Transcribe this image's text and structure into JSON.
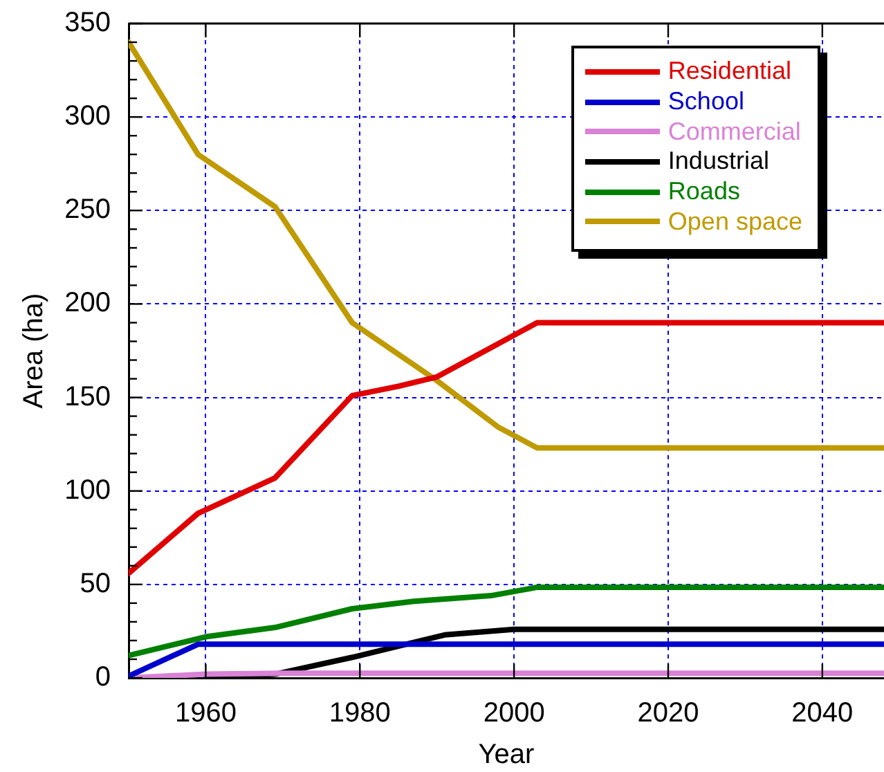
{
  "chart_data": {
    "type": "line",
    "xlabel": "Year",
    "ylabel": "Area (ha)",
    "xlim": [
      1950,
      2048
    ],
    "xticks": [
      1960,
      1980,
      2000,
      2020,
      2040
    ],
    "ylim": [
      0,
      350
    ],
    "yticks": [
      0,
      {
        "value": 10,
        "label": null
      },
      {
        "value": 20,
        "label": null
      },
      {
        "value": 30,
        "label": null
      },
      {
        "value": 40,
        "label": null
      },
      50,
      {
        "value": 60,
        "label": null
      },
      {
        "value": 70,
        "label": null
      },
      {
        "value": 80,
        "label": null
      },
      {
        "value": 90,
        "label": null
      },
      100,
      {
        "value": 110,
        "label": null
      },
      {
        "value": 120,
        "label": null
      },
      {
        "value": 130,
        "label": null
      },
      {
        "value": 140,
        "label": null
      },
      150,
      {
        "value": 160,
        "label": null
      },
      {
        "value": 170,
        "label": null
      },
      {
        "value": 180,
        "label": null
      },
      {
        "value": 190,
        "label": null
      },
      200,
      {
        "value": 210,
        "label": null
      },
      {
        "value": 220,
        "label": null
      },
      {
        "value": 230,
        "label": null
      },
      {
        "value": 240,
        "label": null
      },
      250,
      {
        "value": 260,
        "label": null
      },
      {
        "value": 270,
        "label": null
      },
      {
        "value": 280,
        "label": null
      },
      {
        "value": 290,
        "label": null
      },
      300,
      {
        "value": 310,
        "label": null
      },
      {
        "value": 320,
        "label": null
      },
      {
        "value": 330,
        "label": null
      },
      {
        "value": 340,
        "label": null
      },
      350
    ],
    "grid": true,
    "legend": "top right",
    "series": [
      {
        "name": "Residential",
        "color": "#e00000",
        "x": [
          1950,
          1959,
          1969,
          1979,
          1985,
          1990,
          2003,
          2048
        ],
        "values": [
          56,
          88,
          107,
          151,
          156,
          161,
          190,
          190
        ]
      },
      {
        "name": "School",
        "color": "#0000cc",
        "x": [
          1950,
          1959,
          2048
        ],
        "values": [
          1,
          18,
          18
        ]
      },
      {
        "name": "Commercial",
        "color": "#d982d6",
        "x": [
          1950,
          1960,
          1970,
          2048
        ],
        "values": [
          0,
          2,
          2.5,
          2.5
        ]
      },
      {
        "name": "Industrial",
        "color": "#000000",
        "x": [
          1960,
          1969,
          1979,
          1987,
          1991,
          2000,
          2048
        ],
        "values": [
          0,
          2,
          11,
          19,
          23,
          26,
          26
        ]
      },
      {
        "name": "Roads",
        "color": "#008000",
        "x": [
          1950,
          1960,
          1969,
          1979,
          1987,
          1997,
          2003,
          2048
        ],
        "values": [
          12,
          22,
          27,
          37,
          41,
          44,
          48.5,
          48.5
        ]
      },
      {
        "name": "Open space",
        "color": "#bf9a00",
        "x": [
          1950,
          1959,
          1969,
          1979,
          1990,
          1998,
          2003,
          2048
        ],
        "values": [
          340,
          280,
          252,
          190,
          159,
          134,
          123,
          123
        ]
      }
    ]
  }
}
